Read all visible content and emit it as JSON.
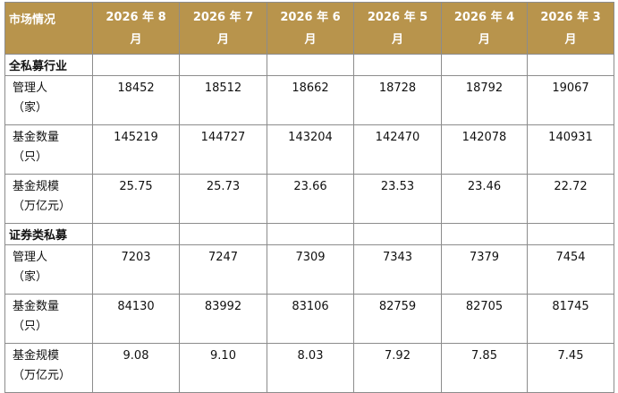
{
  "table": {
    "corner": "市场情况",
    "months": [
      "2026 年 8 月",
      "2026 年 7 月",
      "2026 年 6 月",
      "2026 年 5 月",
      "2026 年 4 月",
      "2026 年 3 月"
    ],
    "sections": [
      {
        "title": "全私募行业",
        "rows": [
          {
            "label1": "管理人",
            "label2": "（家）",
            "values": [
              "18452",
              "18512",
              "18662",
              "18728",
              "18792",
              "19067"
            ]
          },
          {
            "label1": "基金数量",
            "label2": "（只）",
            "values": [
              "145219",
              "144727",
              "143204",
              "142470",
              "142078",
              "140931"
            ]
          },
          {
            "label1": "基金规模",
            "label2": "（万亿元）",
            "values": [
              "25.75",
              "25.73",
              "23.66",
              "23.53",
              "23.46",
              "22.72"
            ]
          }
        ]
      },
      {
        "title": "证券类私募",
        "rows": [
          {
            "label1": "管理人",
            "label2": "（家）",
            "values": [
              "7203",
              "7247",
              "7309",
              "7343",
              "7379",
              "7454"
            ]
          },
          {
            "label1": "基金数量",
            "label2": "（只）",
            "values": [
              "84130",
              "83992",
              "83106",
              "82759",
              "82705",
              "81745"
            ]
          },
          {
            "label1": "基金规模",
            "label2": "（万亿元）",
            "values": [
              "9.08",
              "9.10",
              "8.03",
              "7.92",
              "7.85",
              "7.45"
            ]
          }
        ]
      }
    ]
  },
  "colors": {
    "header_bg": "#b8944c",
    "header_text": "#ffffff",
    "border": "#8c8c8c"
  }
}
